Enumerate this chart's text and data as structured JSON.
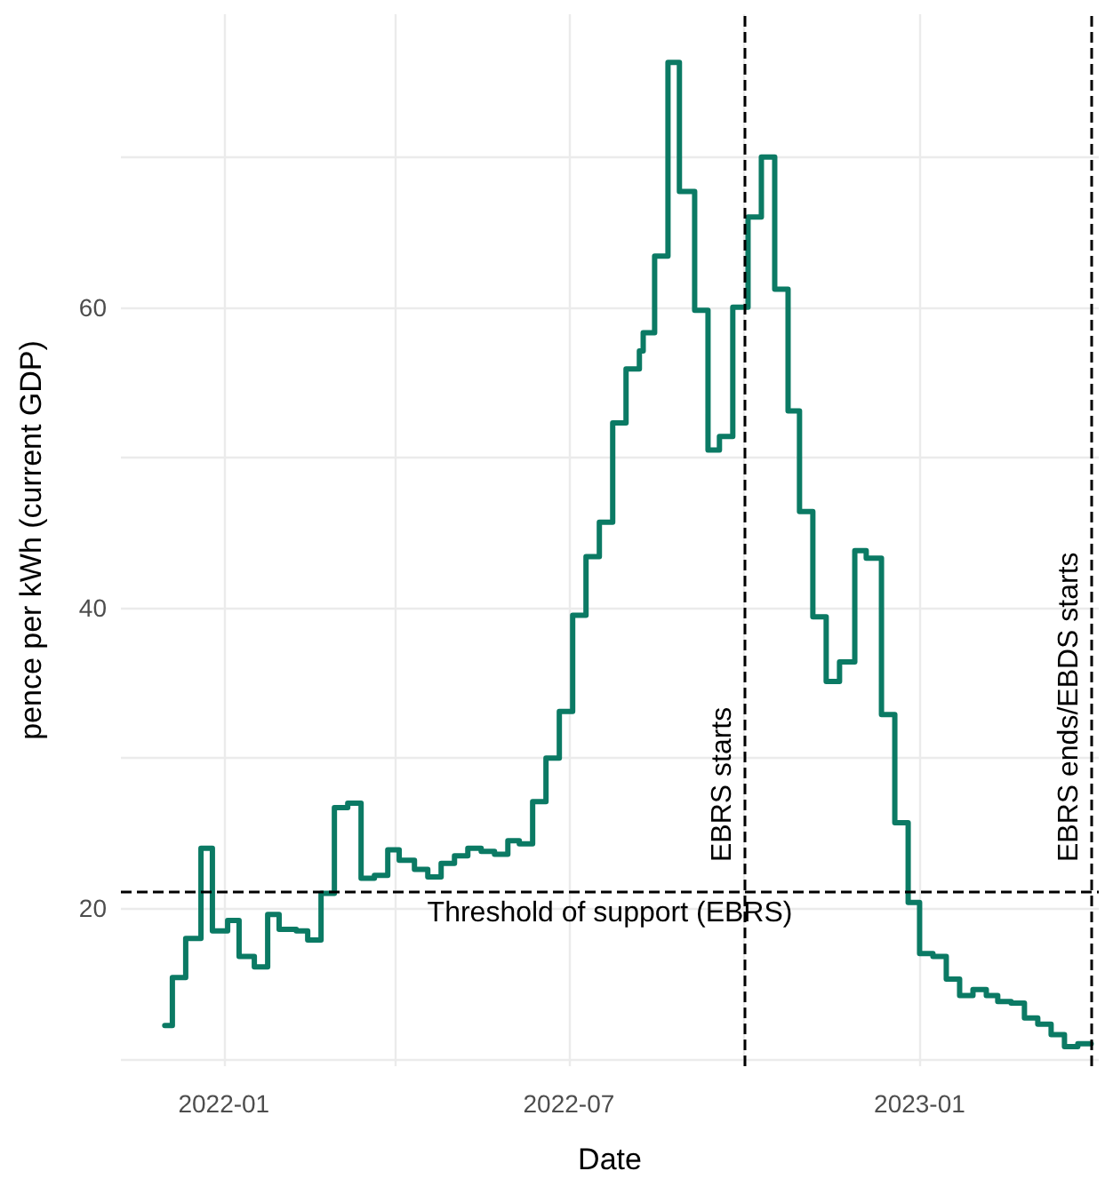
{
  "chart_data": {
    "type": "step",
    "xlabel": "Date",
    "ylabel": "pence per kWh (current GDP)",
    "x": [
      "2021-12-01",
      "2021-12-05",
      "2021-12-12",
      "2021-12-20",
      "2021-12-26",
      "2022-01-03",
      "2022-01-09",
      "2022-01-17",
      "2022-01-24",
      "2022-01-30",
      "2022-02-08",
      "2022-02-14",
      "2022-02-21",
      "2022-02-28",
      "2022-03-07",
      "2022-03-14",
      "2022-03-21",
      "2022-03-28",
      "2022-04-03",
      "2022-04-11",
      "2022-04-18",
      "2022-04-25",
      "2022-05-02",
      "2022-05-09",
      "2022-05-16",
      "2022-05-23",
      "2022-05-30",
      "2022-06-05",
      "2022-06-12",
      "2022-06-19",
      "2022-06-26",
      "2022-07-03",
      "2022-07-10",
      "2022-07-17",
      "2022-07-24",
      "2022-07-31",
      "2022-08-07",
      "2022-08-09",
      "2022-08-15",
      "2022-08-22",
      "2022-08-28",
      "2022-09-05",
      "2022-09-12",
      "2022-09-18",
      "2022-09-25",
      "2022-10-03",
      "2022-10-10",
      "2022-10-17",
      "2022-10-24",
      "2022-10-30",
      "2022-11-06",
      "2022-11-13",
      "2022-11-20",
      "2022-11-28",
      "2022-12-04",
      "2022-12-12",
      "2022-12-19",
      "2022-12-26",
      "2023-01-01",
      "2023-01-08",
      "2023-01-15",
      "2023-01-22",
      "2023-01-29",
      "2023-02-05",
      "2023-02-11",
      "2023-02-18",
      "2023-02-25",
      "2023-03-04",
      "2023-03-11",
      "2023-03-18",
      "2023-03-25",
      "2023-04-01"
    ],
    "series": [
      {
        "color": "#0b7a64",
        "values": [
          12.2,
          15.4,
          18.0,
          24.0,
          18.5,
          19.2,
          16.8,
          16.1,
          19.6,
          18.6,
          18.5,
          17.9,
          21.0,
          26.7,
          27.0,
          22.0,
          22.2,
          23.9,
          23.2,
          22.6,
          22.1,
          23.0,
          23.5,
          24.0,
          23.8,
          23.6,
          24.5,
          24.3,
          27.1,
          30.0,
          33.1,
          39.5,
          43.4,
          45.7,
          52.3,
          55.9,
          57.1,
          58.3,
          63.4,
          76.3,
          67.7,
          59.8,
          50.5,
          51.4,
          60.0,
          66.0,
          70.0,
          61.2,
          53.1,
          46.4,
          39.4,
          35.1,
          36.4,
          43.8,
          43.3,
          32.9,
          25.7,
          20.4,
          17.0,
          16.8,
          15.3,
          14.2,
          14.6,
          14.2,
          13.8,
          13.7,
          12.7,
          12.3,
          11.6,
          10.8,
          11.0,
          11.0
        ]
      }
    ],
    "xlim": [
      "2021-11-08",
      "2023-04-05"
    ],
    "xticks": [
      {
        "value": "2022-01-01",
        "label": "2022-01"
      },
      {
        "value": "2022-04-01",
        "label": null
      },
      {
        "value": "2022-07-01",
        "label": "2022-07"
      },
      {
        "value": "2022-10-01",
        "label": null
      },
      {
        "value": "2023-01-01",
        "label": "2023-01"
      }
    ],
    "ylim": [
      9.5,
      79.5
    ],
    "yticks": [
      {
        "value": 10,
        "label": null
      },
      20,
      {
        "value": 30,
        "label": null
      },
      40,
      {
        "value": 50,
        "label": null
      },
      60,
      {
        "value": 70,
        "label": null
      }
    ],
    "grid": true,
    "ref_lines": [
      {
        "axis": "y",
        "value": 21.1,
        "label": "Threshold of support (EBRS)",
        "color": "#000000",
        "line_style": "dashed"
      },
      {
        "axis": "x",
        "value": "2022-10-01",
        "label": "EBRS starts",
        "color": "#000000",
        "line_style": "dashed"
      },
      {
        "axis": "x",
        "value": "2023-04-01",
        "label": "EBRS ends/EBDS starts",
        "color": "#000000",
        "line_style": "dashed"
      }
    ]
  }
}
